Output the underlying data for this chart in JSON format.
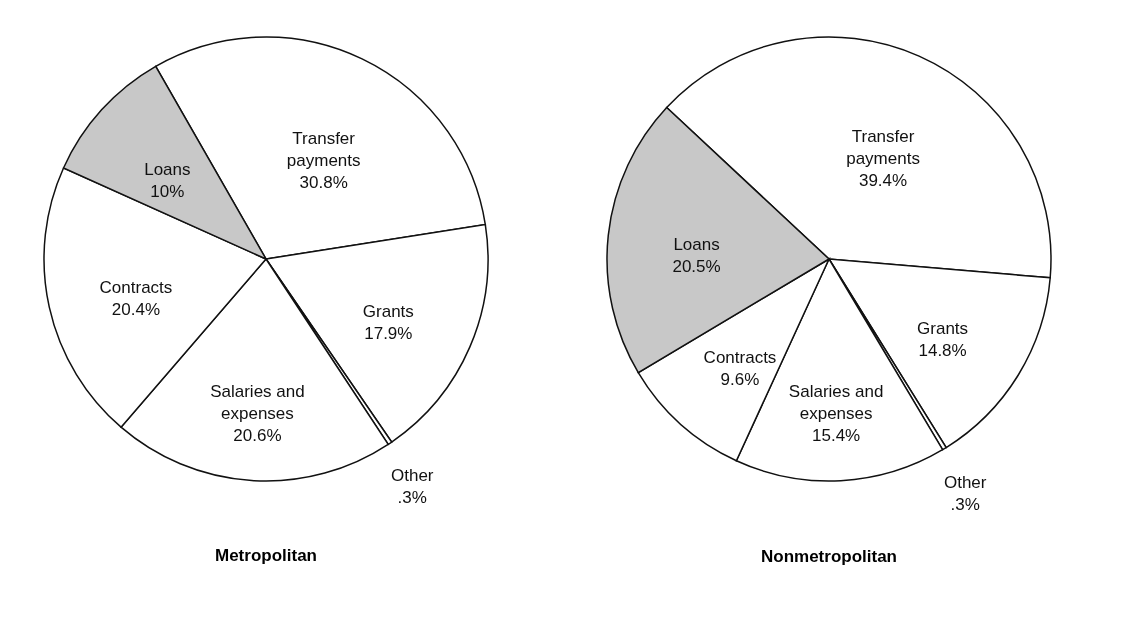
{
  "chart_data": [
    {
      "type": "pie",
      "title": "Metropolitan",
      "categories": [
        "Transfer payments",
        "Grants",
        "Other",
        "Salaries and expenses",
        "Contracts",
        "Loans"
      ],
      "values": [
        30.8,
        17.9,
        0.3,
        20.6,
        20.4,
        10
      ],
      "value_labels": [
        "30.8%",
        "17.9%",
        ".3%",
        "20.6%",
        "20.4%",
        "10%"
      ],
      "colors": [
        "#ffffff",
        "#ffffff",
        "#ffffff",
        "#ffffff",
        "#ffffff",
        "#c8c8c8"
      ]
    },
    {
      "type": "pie",
      "title": "Nonmetropolitan",
      "categories": [
        "Transfer payments",
        "Grants",
        "Other",
        "Salaries and expenses",
        "Contracts",
        "Loans"
      ],
      "values": [
        39.4,
        14.8,
        0.3,
        15.4,
        9.6,
        20.5
      ],
      "value_labels": [
        "39.4%",
        "14.8%",
        ".3%",
        "15.4%",
        "9.6%",
        "20.5%"
      ],
      "colors": [
        "#ffffff",
        "#ffffff",
        "#ffffff",
        "#ffffff",
        "#ffffff",
        "#c8c8c8"
      ]
    }
  ]
}
